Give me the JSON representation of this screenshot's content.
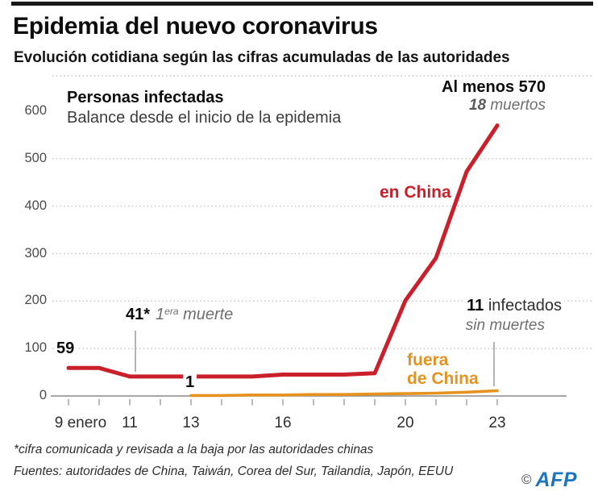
{
  "header": {
    "title": "Epidemia del nuevo coronavirus",
    "subtitle": "Evolución cotidiana según las cifras acumuladas de las autoridades"
  },
  "chart": {
    "inner_title": "Personas infectadas",
    "inner_subtitle": "Balance desde el inicio de la epidemia"
  },
  "chart_data": {
    "type": "line",
    "title": "Personas infectadas",
    "subtitle": "Balance desde el inicio de la epidemia",
    "x": [
      9,
      10,
      11,
      12,
      13,
      14,
      15,
      16,
      17,
      18,
      19,
      20,
      21,
      22,
      23
    ],
    "x_unit": "enero",
    "ylim": [
      0,
      670
    ],
    "yticks": [
      600,
      500,
      400,
      300,
      200,
      100,
      0
    ],
    "xticks": [
      {
        "label": "9 enero",
        "day": 9
      },
      {
        "label": "11",
        "day": 11
      },
      {
        "label": "13",
        "day": 13
      },
      {
        "label": "16",
        "day": 16
      },
      {
        "label": "20",
        "day": 20
      },
      {
        "label": "23",
        "day": 23
      }
    ],
    "grid": "horizontal-dotted",
    "legend_position": "inline-labels",
    "series": [
      {
        "name": "en China",
        "color": "#c9202c",
        "values": [
          59,
          59,
          41,
          41,
          41,
          41,
          41,
          45,
          45,
          45,
          48,
          201,
          291,
          473,
          570
        ]
      },
      {
        "name": "fuera de China",
        "color": "#e5921f",
        "values": [
          null,
          null,
          null,
          null,
          1,
          1,
          2,
          2,
          3,
          3,
          4,
          5,
          6,
          8,
          11
        ]
      }
    ]
  },
  "annotations": {
    "peak": {
      "line1": "Al menos 570",
      "deaths_num": "18",
      "deaths_text": "muertos"
    },
    "china_label": "en China",
    "start_value": "59",
    "first_death": {
      "value": "41*",
      "num": "1",
      "sup": "era",
      "text": "muerte"
    },
    "outside_start": "1",
    "outside_end": {
      "num": "11",
      "text": "infectados",
      "sub": "sin muertes"
    },
    "outside_label": {
      "line1": "fuera",
      "line2": "de China"
    }
  },
  "colors": {
    "china_red": "#c9202c",
    "outside_orange": "#e5921f",
    "afp_blue": "#1d76bd",
    "grid_gray": "#c6c6c6",
    "axis_gray": "#8a8a8a"
  },
  "footer": {
    "note": "*cifra comunicada y revisada a la baja por las autoridades chinas",
    "sources": "Fuentes: autoridades de China, Taiwán, Corea del Sur, Tailandia, Japón, EEUU",
    "credit_symbol": "©",
    "credit_name": "AFP"
  }
}
